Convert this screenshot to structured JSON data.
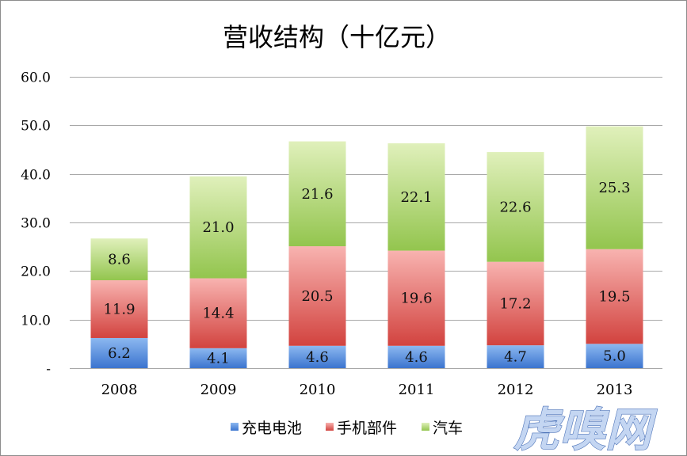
{
  "chart_data": {
    "type": "bar",
    "stacked": true,
    "title": "营收结构（十亿元）",
    "categories": [
      "2008",
      "2009",
      "2010",
      "2011",
      "2012",
      "2013"
    ],
    "series": [
      {
        "name": "充电电池",
        "values": [
          6.2,
          4.1,
          4.6,
          4.6,
          4.7,
          5.0
        ],
        "color": "#3b74cf",
        "color_light": "#8cb8f0"
      },
      {
        "name": "手机部件",
        "values": [
          11.9,
          14.4,
          20.5,
          19.6,
          17.2,
          19.5
        ],
        "color": "#d2433f",
        "color_light": "#f8b3b0"
      },
      {
        "name": "汽车",
        "values": [
          8.6,
          21.0,
          21.6,
          22.1,
          22.6,
          25.3
        ],
        "color": "#93c54e",
        "color_light": "#e0f0bb"
      }
    ],
    "ylim": [
      0,
      60
    ],
    "yticks": {
      "values": [
        0,
        10,
        20,
        30,
        40,
        50,
        60
      ],
      "labels": [
        "-",
        "10.0",
        "20.0",
        "30.0",
        "40.0",
        "50.0",
        "60.0"
      ]
    },
    "grid": true,
    "legend": "bottom",
    "data_labels": true
  },
  "watermark": {
    "text": "虎嗅网",
    "color": "#c4d6f2"
  }
}
